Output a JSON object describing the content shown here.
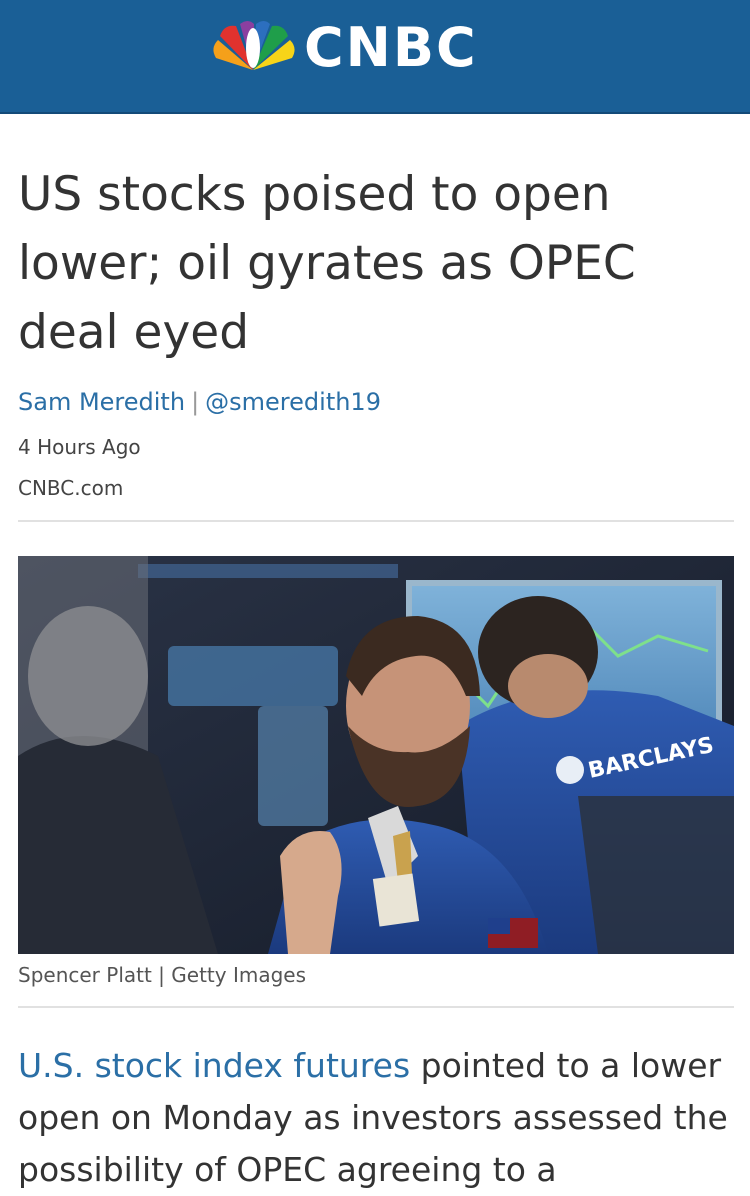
{
  "header": {
    "logo_text": "CNBC",
    "background_color": "#1a5f96",
    "logo_icon": "nbc-peacock-icon"
  },
  "article": {
    "headline": "US stocks poised to open lower; oil gyrates as OPEC deal eyed",
    "author": "Sam Meredith",
    "byline_separator": "|",
    "twitter_handle": "@smeredith19",
    "timestamp": "4 Hours Ago",
    "source": "CNBC.com",
    "image": {
      "description": "traders-on-stock-exchange-floor",
      "badge_text": "BARCLAYS",
      "credit": "Spencer Platt | Getty Images"
    },
    "body": {
      "link_text": "U.S. stock index futures",
      "text": " pointed to a lower open on Monday as investors assessed the possibility of OPEC agreeing to a"
    }
  },
  "colors": {
    "link": "#2b6fa6",
    "text": "#333333",
    "divider": "#e1e1e1"
  }
}
